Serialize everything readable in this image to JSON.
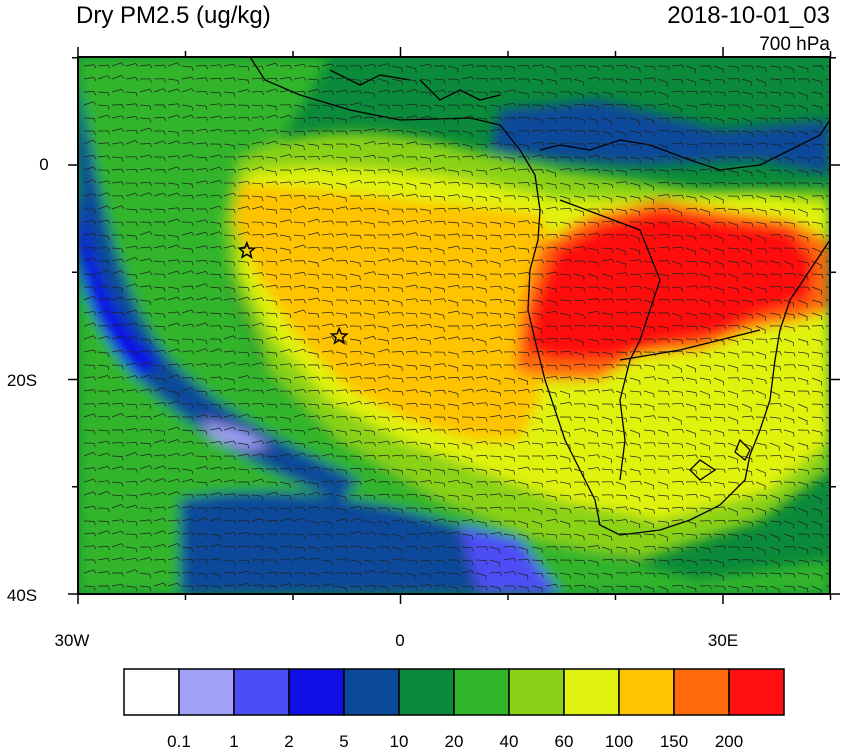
{
  "title": {
    "variable": "Dry PM2.5 (ug/kg)",
    "datetime": "2018-10-01_03",
    "level": "700 hPa"
  },
  "axes": {
    "lat_labels": [
      "0",
      "20S",
      "40S"
    ],
    "lon_labels": [
      "30W",
      "0",
      "30E"
    ]
  },
  "colorbar": {
    "colors": [
      "#ffffff",
      "#a0a0f5",
      "#4d4df5",
      "#1010e6",
      "#0b4a9a",
      "#0a8a3a",
      "#33b529",
      "#8ad219",
      "#e0f310",
      "#ffc300",
      "#ff6a0a",
      "#ff0f0f"
    ],
    "labels": [
      "0.1",
      "1",
      "2",
      "5",
      "10",
      "20",
      "40",
      "60",
      "100",
      "150",
      "200"
    ]
  },
  "markers": [
    {
      "name": "star-marker-1",
      "lon": -14.3,
      "lat": -8.0
    },
    {
      "name": "star-marker-2",
      "lon": -5.7,
      "lat": -16.0
    }
  ]
}
